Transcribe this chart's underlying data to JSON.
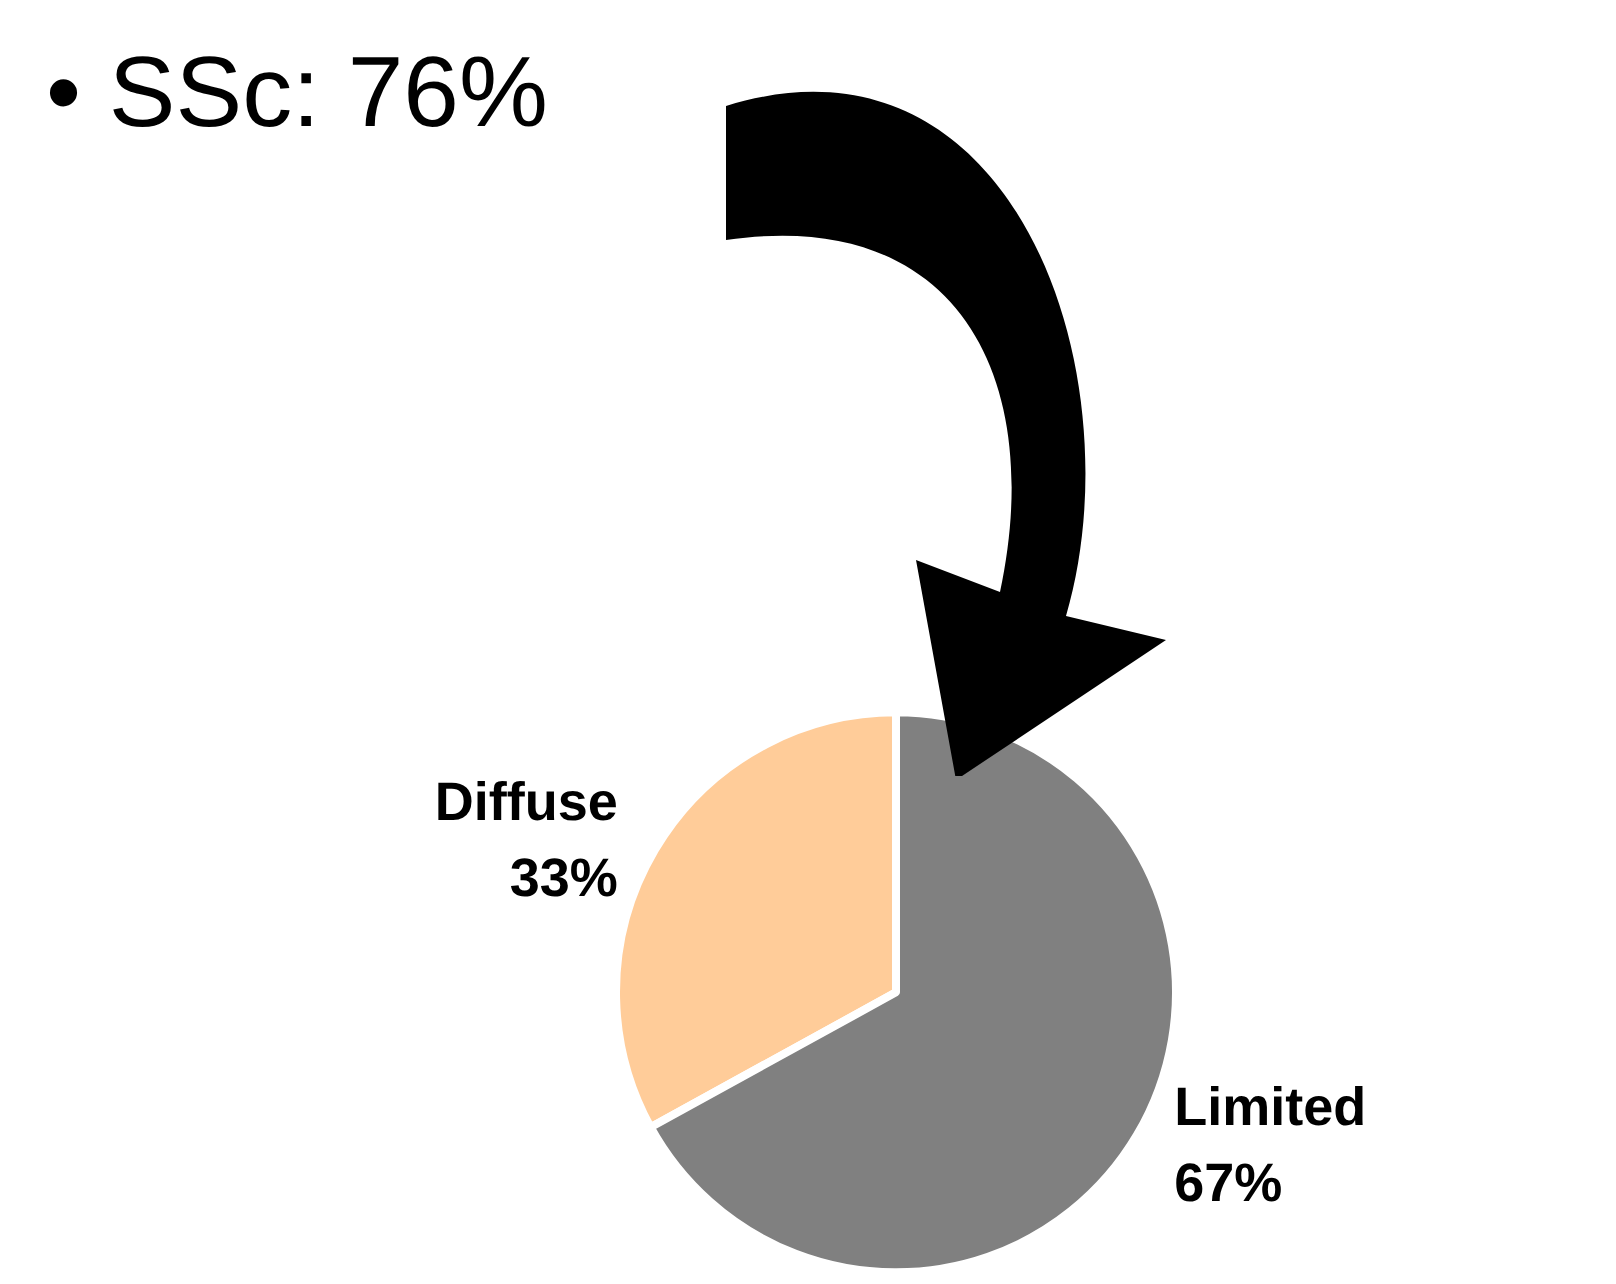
{
  "chart_data": {
    "type": "pie",
    "title": "• SSc: 76%",
    "categories": [
      "Diffuse",
      "Limited"
    ],
    "values": [
      33,
      67
    ],
    "colors": [
      "#ffcc99",
      "#808080"
    ],
    "value_labels": [
      "33%",
      "67%"
    ],
    "legend": false
  }
}
